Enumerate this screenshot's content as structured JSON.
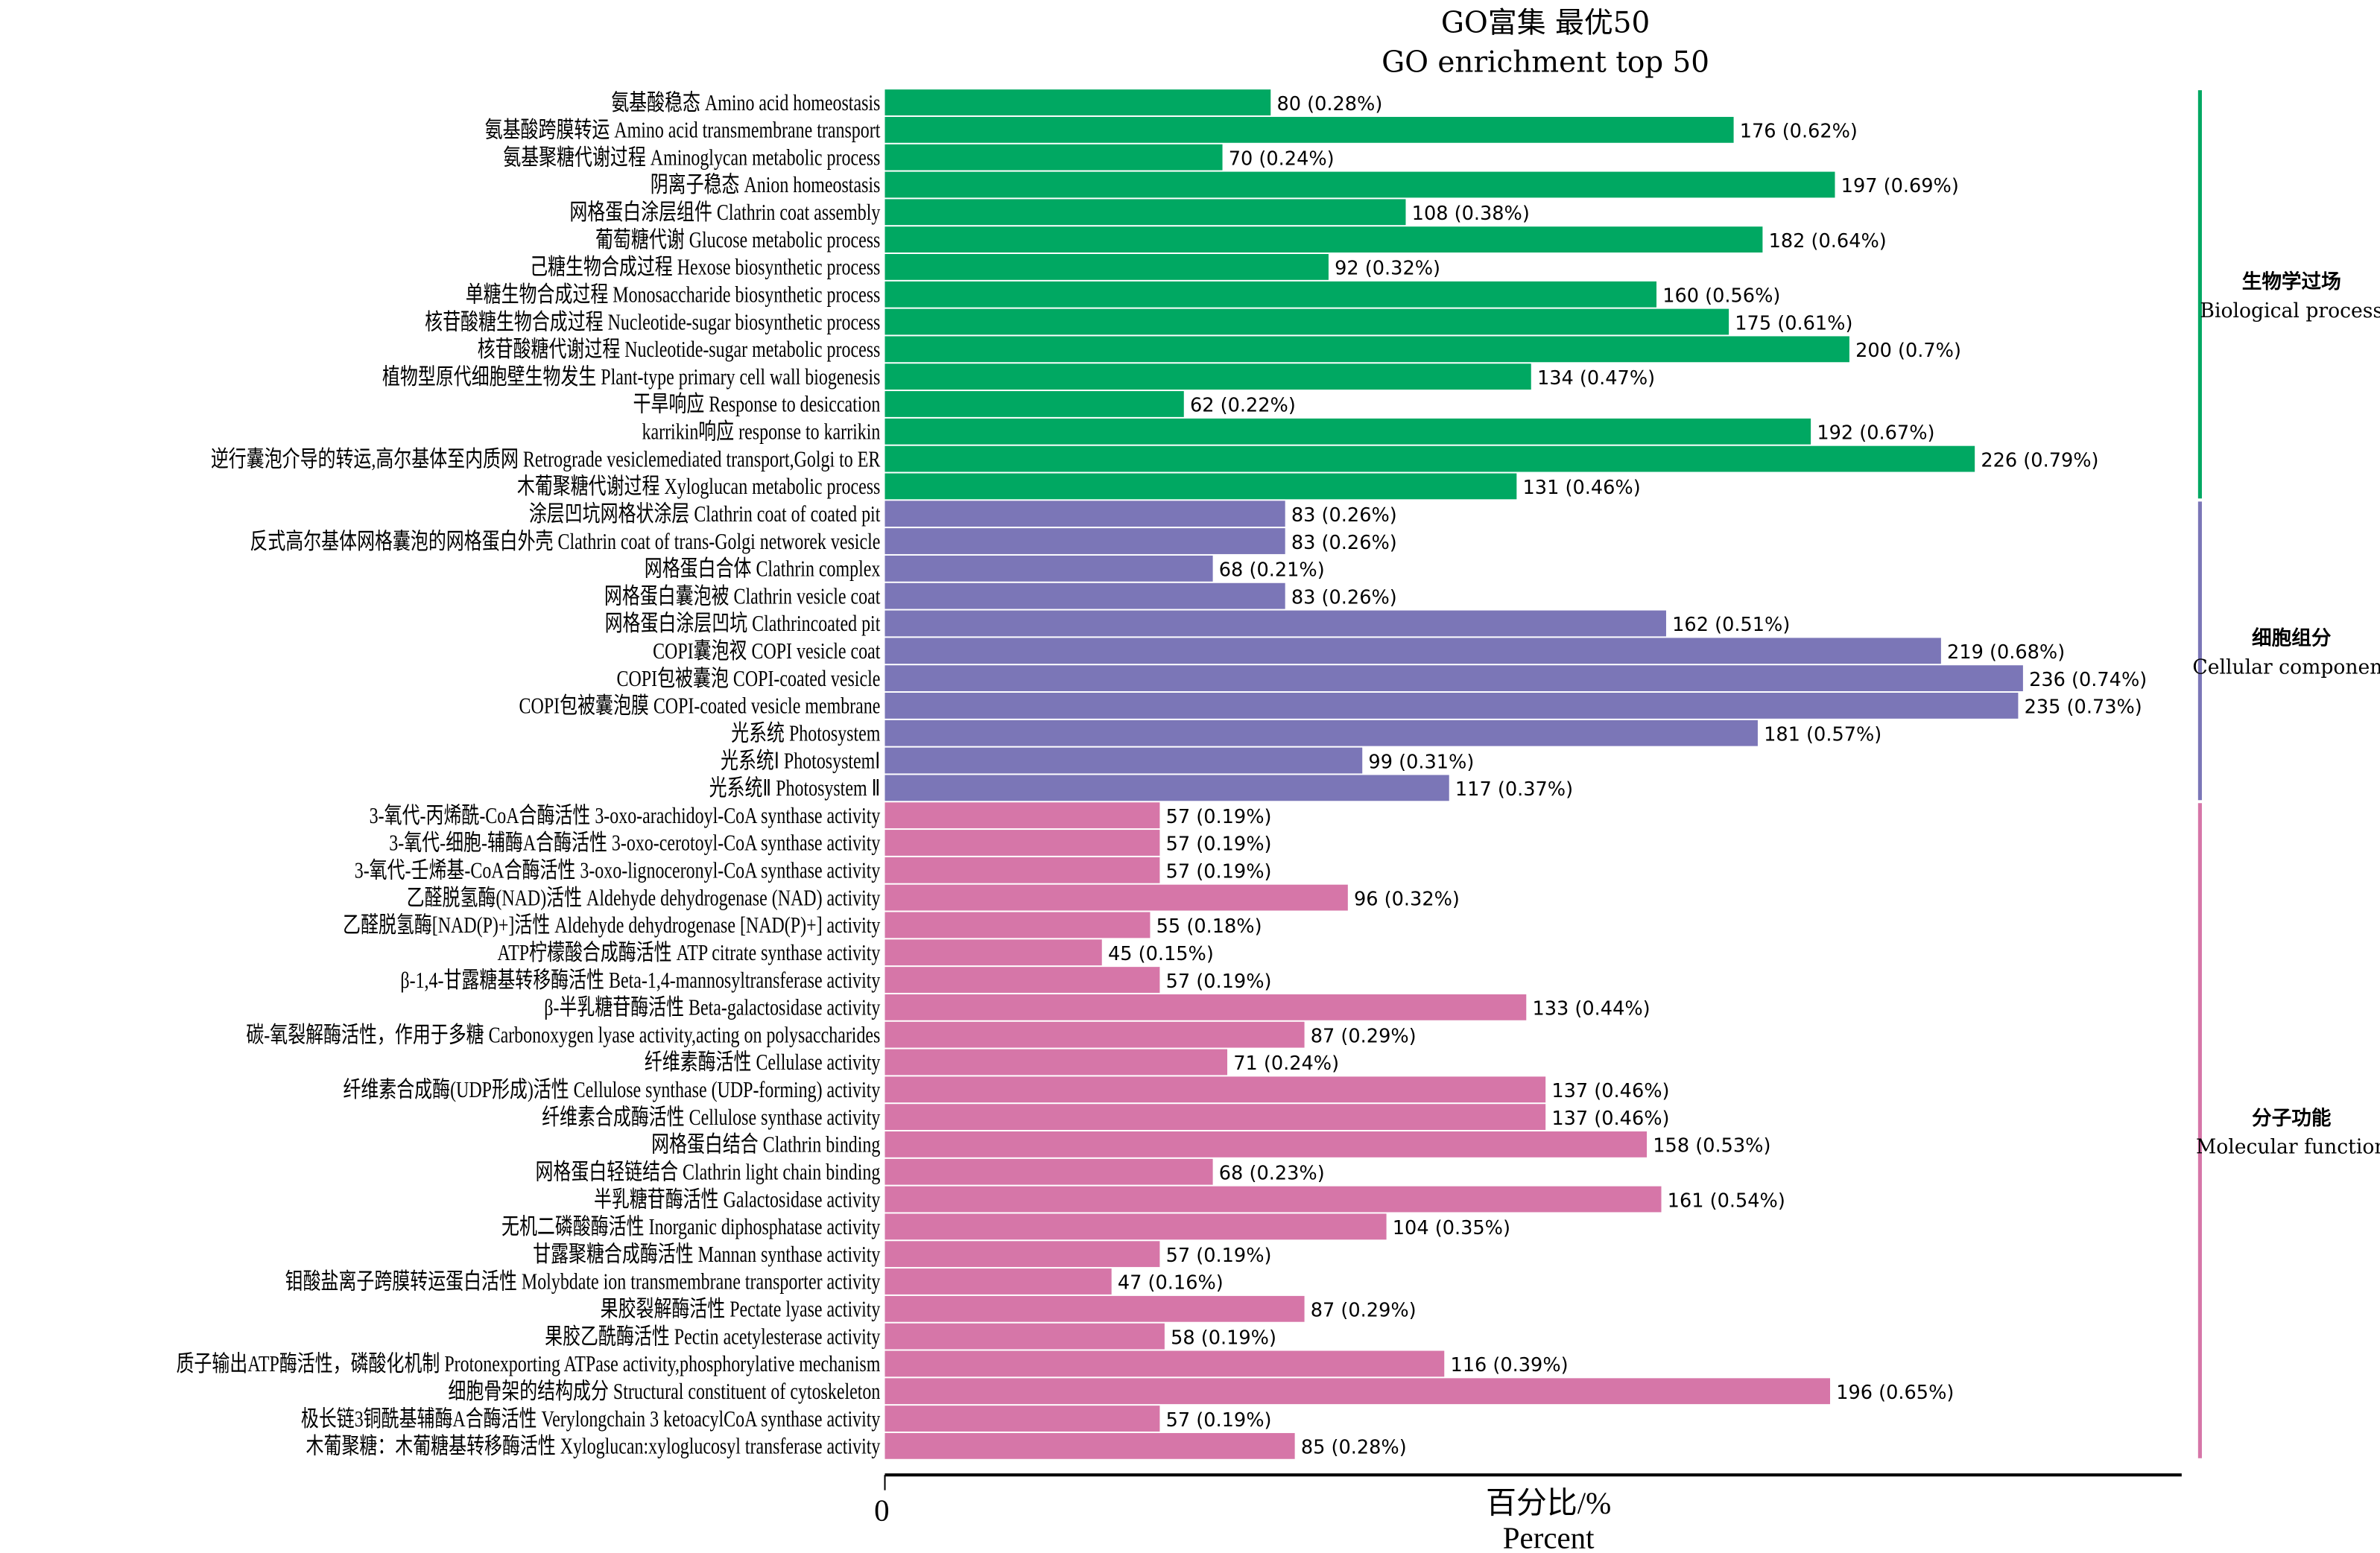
{
  "chart_data": {
    "type": "bar",
    "orientation": "horizontal",
    "title": "GO富集 最优50",
    "subtitle": "GO enrichment top 50",
    "xlabel": "百分比/%",
    "xlabel_en": "Percent",
    "x_ticks": [
      "0"
    ],
    "grid": false,
    "groups": [
      {
        "name": "生物学过场",
        "name_en": "Biological process",
        "color": "#00a862",
        "items": [
          {
            "label": "氨基酸稳态 Amino acid homeostasis",
            "value": 80,
            "text": "80 (0.28%)"
          },
          {
            "label": "氨基酸跨膜转运 Amino acid transmembrane transport",
            "value": 176,
            "text": "176 (0.62%)"
          },
          {
            "label": "氨基聚糖代谢过程 Aminoglycan metabolic process",
            "value": 70,
            "text": "70 (0.24%)"
          },
          {
            "label": "阴离子稳态 Anion homeostasis",
            "value": 197,
            "text": "197 (0.69%)"
          },
          {
            "label": "网格蛋白涂层组件 Clathrin coat assembly",
            "value": 108,
            "text": "108 (0.38%)"
          },
          {
            "label": "葡萄糖代谢 Glucose metabolic process",
            "value": 182,
            "text": "182 (0.64%)"
          },
          {
            "label": "己糖生物合成过程 Hexose biosynthetic process",
            "value": 92,
            "text": "92 (0.32%)"
          },
          {
            "label": "单糖生物合成过程 Monosaccharide biosynthetic process",
            "value": 160,
            "text": "160 (0.56%)"
          },
          {
            "label": "核苷酸糖生物合成过程 Nucleotide-sugar biosynthetic process",
            "value": 175,
            "text": "175 (0.61%)"
          },
          {
            "label": "核苷酸糖代谢过程 Nucleotide-sugar metabolic process",
            "value": 200,
            "text": "200 (0.7%)"
          },
          {
            "label": "植物型原代细胞壁生物发生 Plant-type primary cell wall biogenesis",
            "value": 134,
            "text": "134 (0.47%)"
          },
          {
            "label": "干旱响应 Response to desiccation",
            "value": 62,
            "text": "62 (0.22%)"
          },
          {
            "label": "karrikin响应 response to karrikin",
            "value": 192,
            "text": "192 (0.67%)"
          },
          {
            "label": "逆行囊泡介导的转运,高尔基体至内质网 Retrograde vesiclemediated transport,Golgi to ER",
            "value": 226,
            "text": "226 (0.79%)"
          },
          {
            "label": "木葡聚糖代谢过程 Xyloglucan metabolic process",
            "value": 131,
            "text": "131 (0.46%)"
          }
        ]
      },
      {
        "name": "细胞组分",
        "name_en": "Cellular component",
        "color": "#7b76b7",
        "items": [
          {
            "label": "涂层凹坑网格状涂层 Clathrin coat of coated pit",
            "value": 83,
            "text": "83 (0.26%)"
          },
          {
            "label": "反式高尔基体网格囊泡的网格蛋白外壳 Clathrin coat of trans-Golgi networek vesicle",
            "value": 83,
            "text": "83 (0.26%)"
          },
          {
            "label": "网格蛋白合体 Clathrin complex",
            "value": 68,
            "text": "68 (0.21%)"
          },
          {
            "label": "网格蛋白囊泡被 Clathrin vesicle coat",
            "value": 83,
            "text": "83 (0.26%)"
          },
          {
            "label": "网格蛋白涂层凹坑 Clathrincoated pit",
            "value": 162,
            "text": "162 (0.51%)"
          },
          {
            "label": "COPI囊泡衩 COPI vesicle coat",
            "value": 219,
            "text": "219 (0.68%)"
          },
          {
            "label": "COPI包被囊泡 COPI-coated vesicle",
            "value": 236,
            "text": "236 (0.74%)"
          },
          {
            "label": "COPI包被囊泡膜 COPI-coated vesicle membrane",
            "value": 235,
            "text": "235 (0.73%)"
          },
          {
            "label": "光系统 Photosystem",
            "value": 181,
            "text": "181 (0.57%)"
          },
          {
            "label": "光系统Ⅰ PhotosystemⅠ",
            "value": 99,
            "text": "99 (0.31%)"
          },
          {
            "label": "光系统Ⅱ Photosystem Ⅱ",
            "value": 117,
            "text": "117 (0.37%)"
          }
        ]
      },
      {
        "name": "分子功能",
        "name_en": "Molecular function",
        "color": "#d676a8",
        "items": [
          {
            "label": "3-氧代-丙烯酰-CoA合酶活性 3-oxo-arachidoyl-CoA synthase activity",
            "value": 57,
            "text": "57 (0.19%)"
          },
          {
            "label": "3-氧代-细胞-辅酶A合酶活性 3-oxo-cerotoyl-CoA synthase activity",
            "value": 57,
            "text": "57 (0.19%)"
          },
          {
            "label": "3-氧代-壬烯基-CoA合酶活性 3-oxo-lignoceronyl-CoA synthase activity",
            "value": 57,
            "text": "57 (0.19%)"
          },
          {
            "label": "乙醛脱氢酶(NAD)活性 Aldehyde dehydrogenase (NAD) activity",
            "value": 96,
            "text": "96 (0.32%)"
          },
          {
            "label": "乙醛脱氢酶[NAD(P)+]活性 Aldehyde dehydrogenase [NAD(P)+] activity",
            "value": 55,
            "text": "55 (0.18%)"
          },
          {
            "label": "ATP柠檬酸合成酶活性 ATP citrate synthase activity",
            "value": 45,
            "text": "45 (0.15%)"
          },
          {
            "label": "β-1,4-甘露糖基转移酶活性 Beta-1,4-mannosyltransferase activity",
            "value": 57,
            "text": "57 (0.19%)"
          },
          {
            "label": "β-半乳糖苷酶活性 Beta-galactosidase activity",
            "value": 133,
            "text": "133 (0.44%)"
          },
          {
            "label": "碳-氧裂解酶活性，作用于多糖 Carbonoxygen lyase activity,acting on polysaccharides",
            "value": 87,
            "text": "87 (0.29%)"
          },
          {
            "label": "纤维素酶活性 Cellulase activity",
            "value": 71,
            "text": "71 (0.24%)"
          },
          {
            "label": "纤维素合成酶(UDP形成)活性 Cellulose synthase (UDP-forming) activity",
            "value": 137,
            "text": "137 (0.46%)"
          },
          {
            "label": "纤维素合成酶活性 Cellulose synthase activity",
            "value": 137,
            "text": "137 (0.46%)"
          },
          {
            "label": "网格蛋白结合 Clathrin binding",
            "value": 158,
            "text": "158 (0.53%)"
          },
          {
            "label": "网格蛋白轻链结合 Clathrin light chain binding",
            "value": 68,
            "text": "68 (0.23%)"
          },
          {
            "label": "半乳糖苷酶活性 Galactosidase activity",
            "value": 161,
            "text": "161 (0.54%)"
          },
          {
            "label": "无机二磷酸酶活性 Inorganic diphosphatase activity",
            "value": 104,
            "text": "104 (0.35%)"
          },
          {
            "label": "甘露聚糖合成酶活性 Mannan synthase activity",
            "value": 57,
            "text": "57 (0.19%)"
          },
          {
            "label": "钼酸盐离子跨膜转运蛋白活性 Molybdate ion transmembrane transporter activity",
            "value": 47,
            "text": "47 (0.16%)"
          },
          {
            "label": "果胶裂解酶活性 Pectate lyase activity",
            "value": 87,
            "text": "87 (0.29%)"
          },
          {
            "label": "果胶乙酰酶活性 Pectin acetylesterase activity",
            "value": 58,
            "text": "58 (0.19%)"
          },
          {
            "label": "质子输出ATP酶活性，磷酸化机制 Protonexporting ATPase activity,phosphorylative mechanism",
            "value": 116,
            "text": "116 (0.39%)"
          },
          {
            "label": "细胞骨架的结构成分 Structural constituent of cytoskeleton",
            "value": 196,
            "text": "196 (0.65%)"
          },
          {
            "label": "极长链3铜酰基辅酶A合酶活性 Verylongchain 3 ketoacylCoA synthase activity",
            "value": 57,
            "text": "57 (0.19%)"
          },
          {
            "label": "木葡聚糖：木葡糖基转移酶活性 Xyloglucan:xyloglucosyl transferase activity",
            "value": 85,
            "text": "85 (0.28%)"
          }
        ]
      }
    ]
  }
}
